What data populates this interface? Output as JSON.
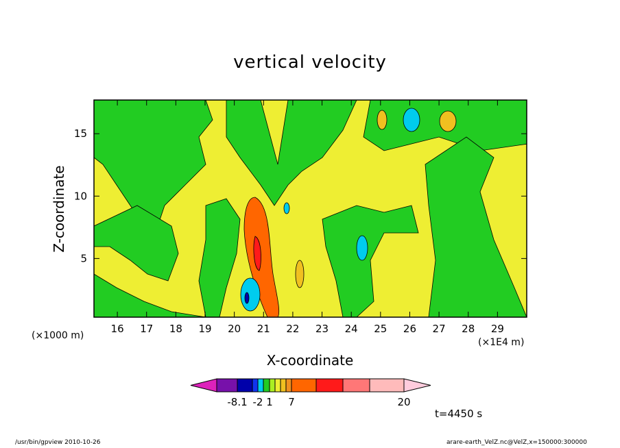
{
  "chart_data": {
    "type": "heatmap",
    "title": "vertical velocity",
    "xlabel": "X-coordinate",
    "ylabel": "Z-coordinate",
    "x_unit_left": "(×1000 m)",
    "x_unit_right": "(×1E4 m)",
    "xlim": [
      15.2,
      30.0
    ],
    "ylim": [
      0.3,
      17.7
    ],
    "x_ticks": [
      16,
      17,
      18,
      19,
      20,
      21,
      22,
      23,
      24,
      25,
      26,
      27,
      28,
      29
    ],
    "y_ticks": [
      5,
      10,
      15
    ],
    "colorbar": {
      "colors": [
        "#dd22bb",
        "#7711aa",
        "#0000aa",
        "#1133ee",
        "#00ccee",
        "#22cc22",
        "#aaee22",
        "#eeee33",
        "#f0c020",
        "#f09020",
        "#ff6600",
        "#ff1a1a",
        "#ff7777",
        "#ffbbbb",
        "#ffccdd"
      ],
      "labels": [
        "-8.1",
        "-2",
        "1",
        "7",
        "20"
      ],
      "label_positions": [
        2,
        4,
        6,
        10,
        14
      ]
    },
    "time_label": "t=4450 s"
  },
  "footer": {
    "left": "/usr/bin/gpview   2010-10-26",
    "right": "arare-earth_VelZ.nc@VelZ,x=150000:300000"
  }
}
